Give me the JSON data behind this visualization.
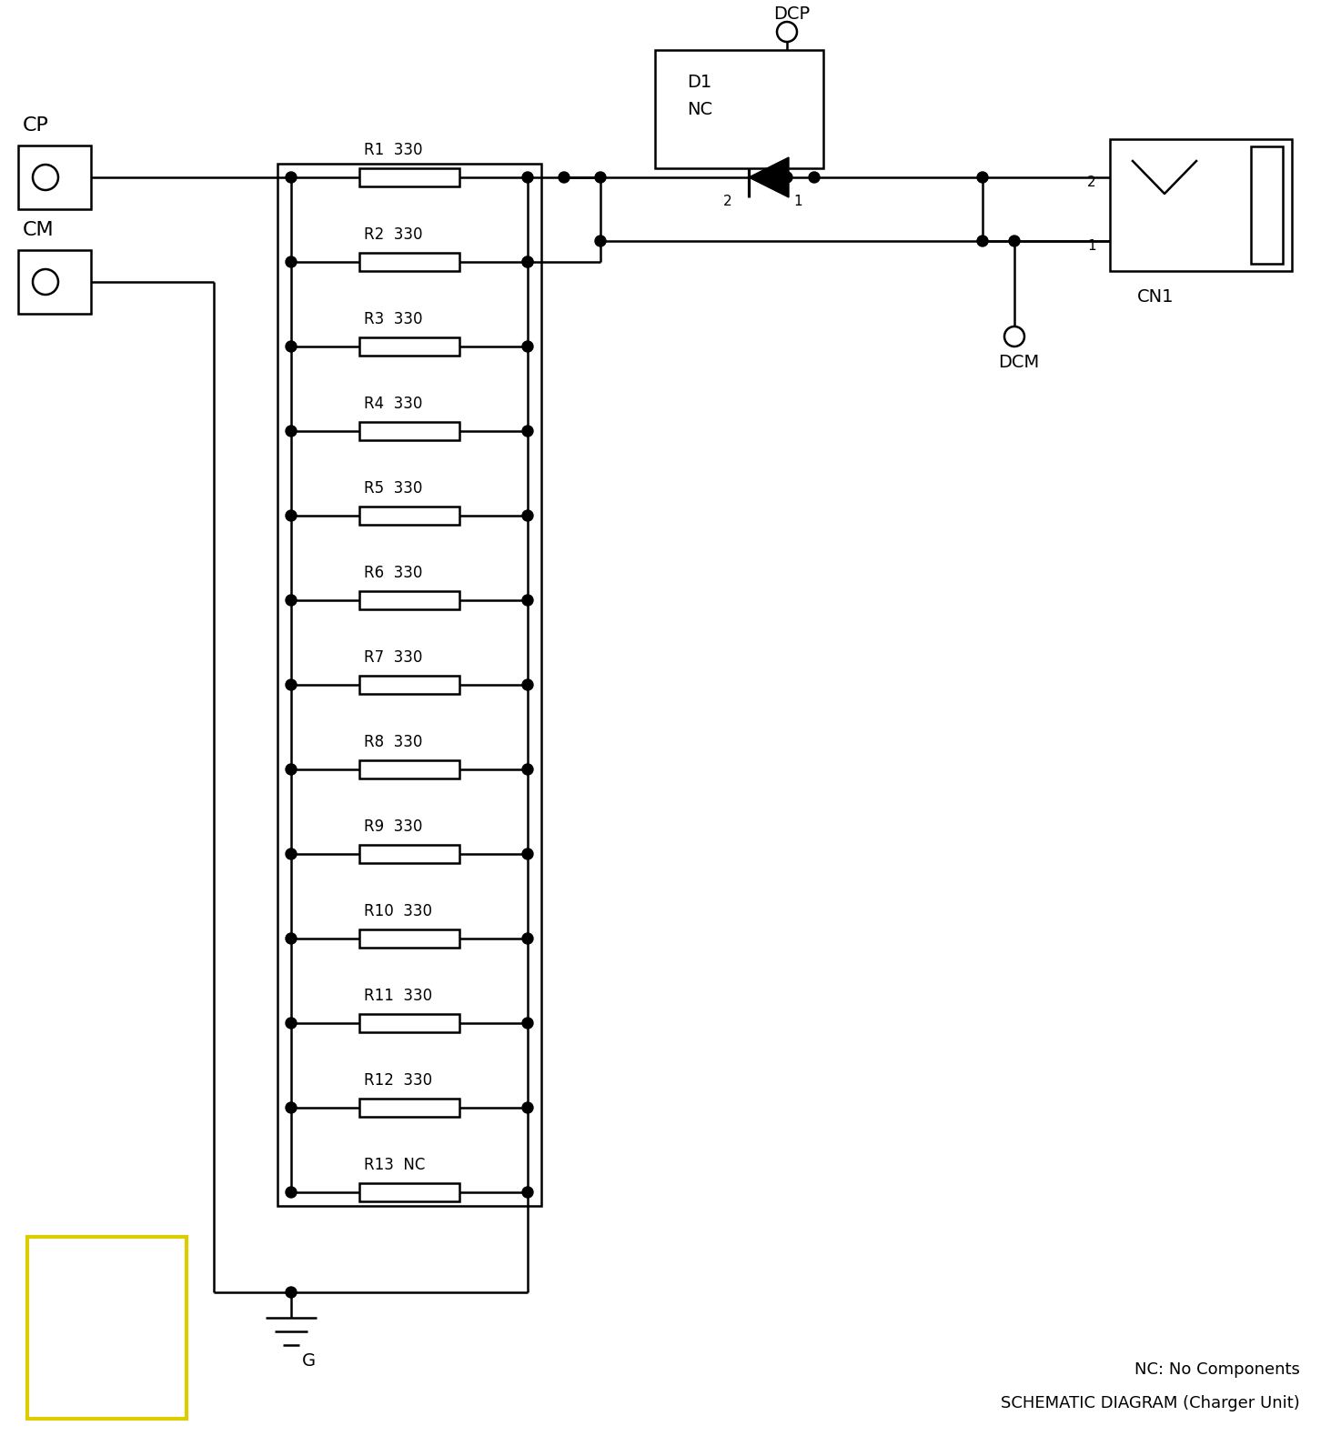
{
  "bg": "#ffffff",
  "lc": "#000000",
  "lw": 1.8,
  "resistor_labels": [
    "R1  330",
    "R2  330",
    "R3  330",
    "R4  330",
    "R5  330",
    "R6  330",
    "R7  330",
    "R8  330",
    "R9  330",
    "R10  330",
    "R11  330",
    "R12  330",
    "R13  NC"
  ],
  "note1": "NC: No Components",
  "note2": "SCHEMATIC DIAGRAM (Charger Unit)",
  "yellow": [
    30,
    1360,
    175,
    200
  ]
}
